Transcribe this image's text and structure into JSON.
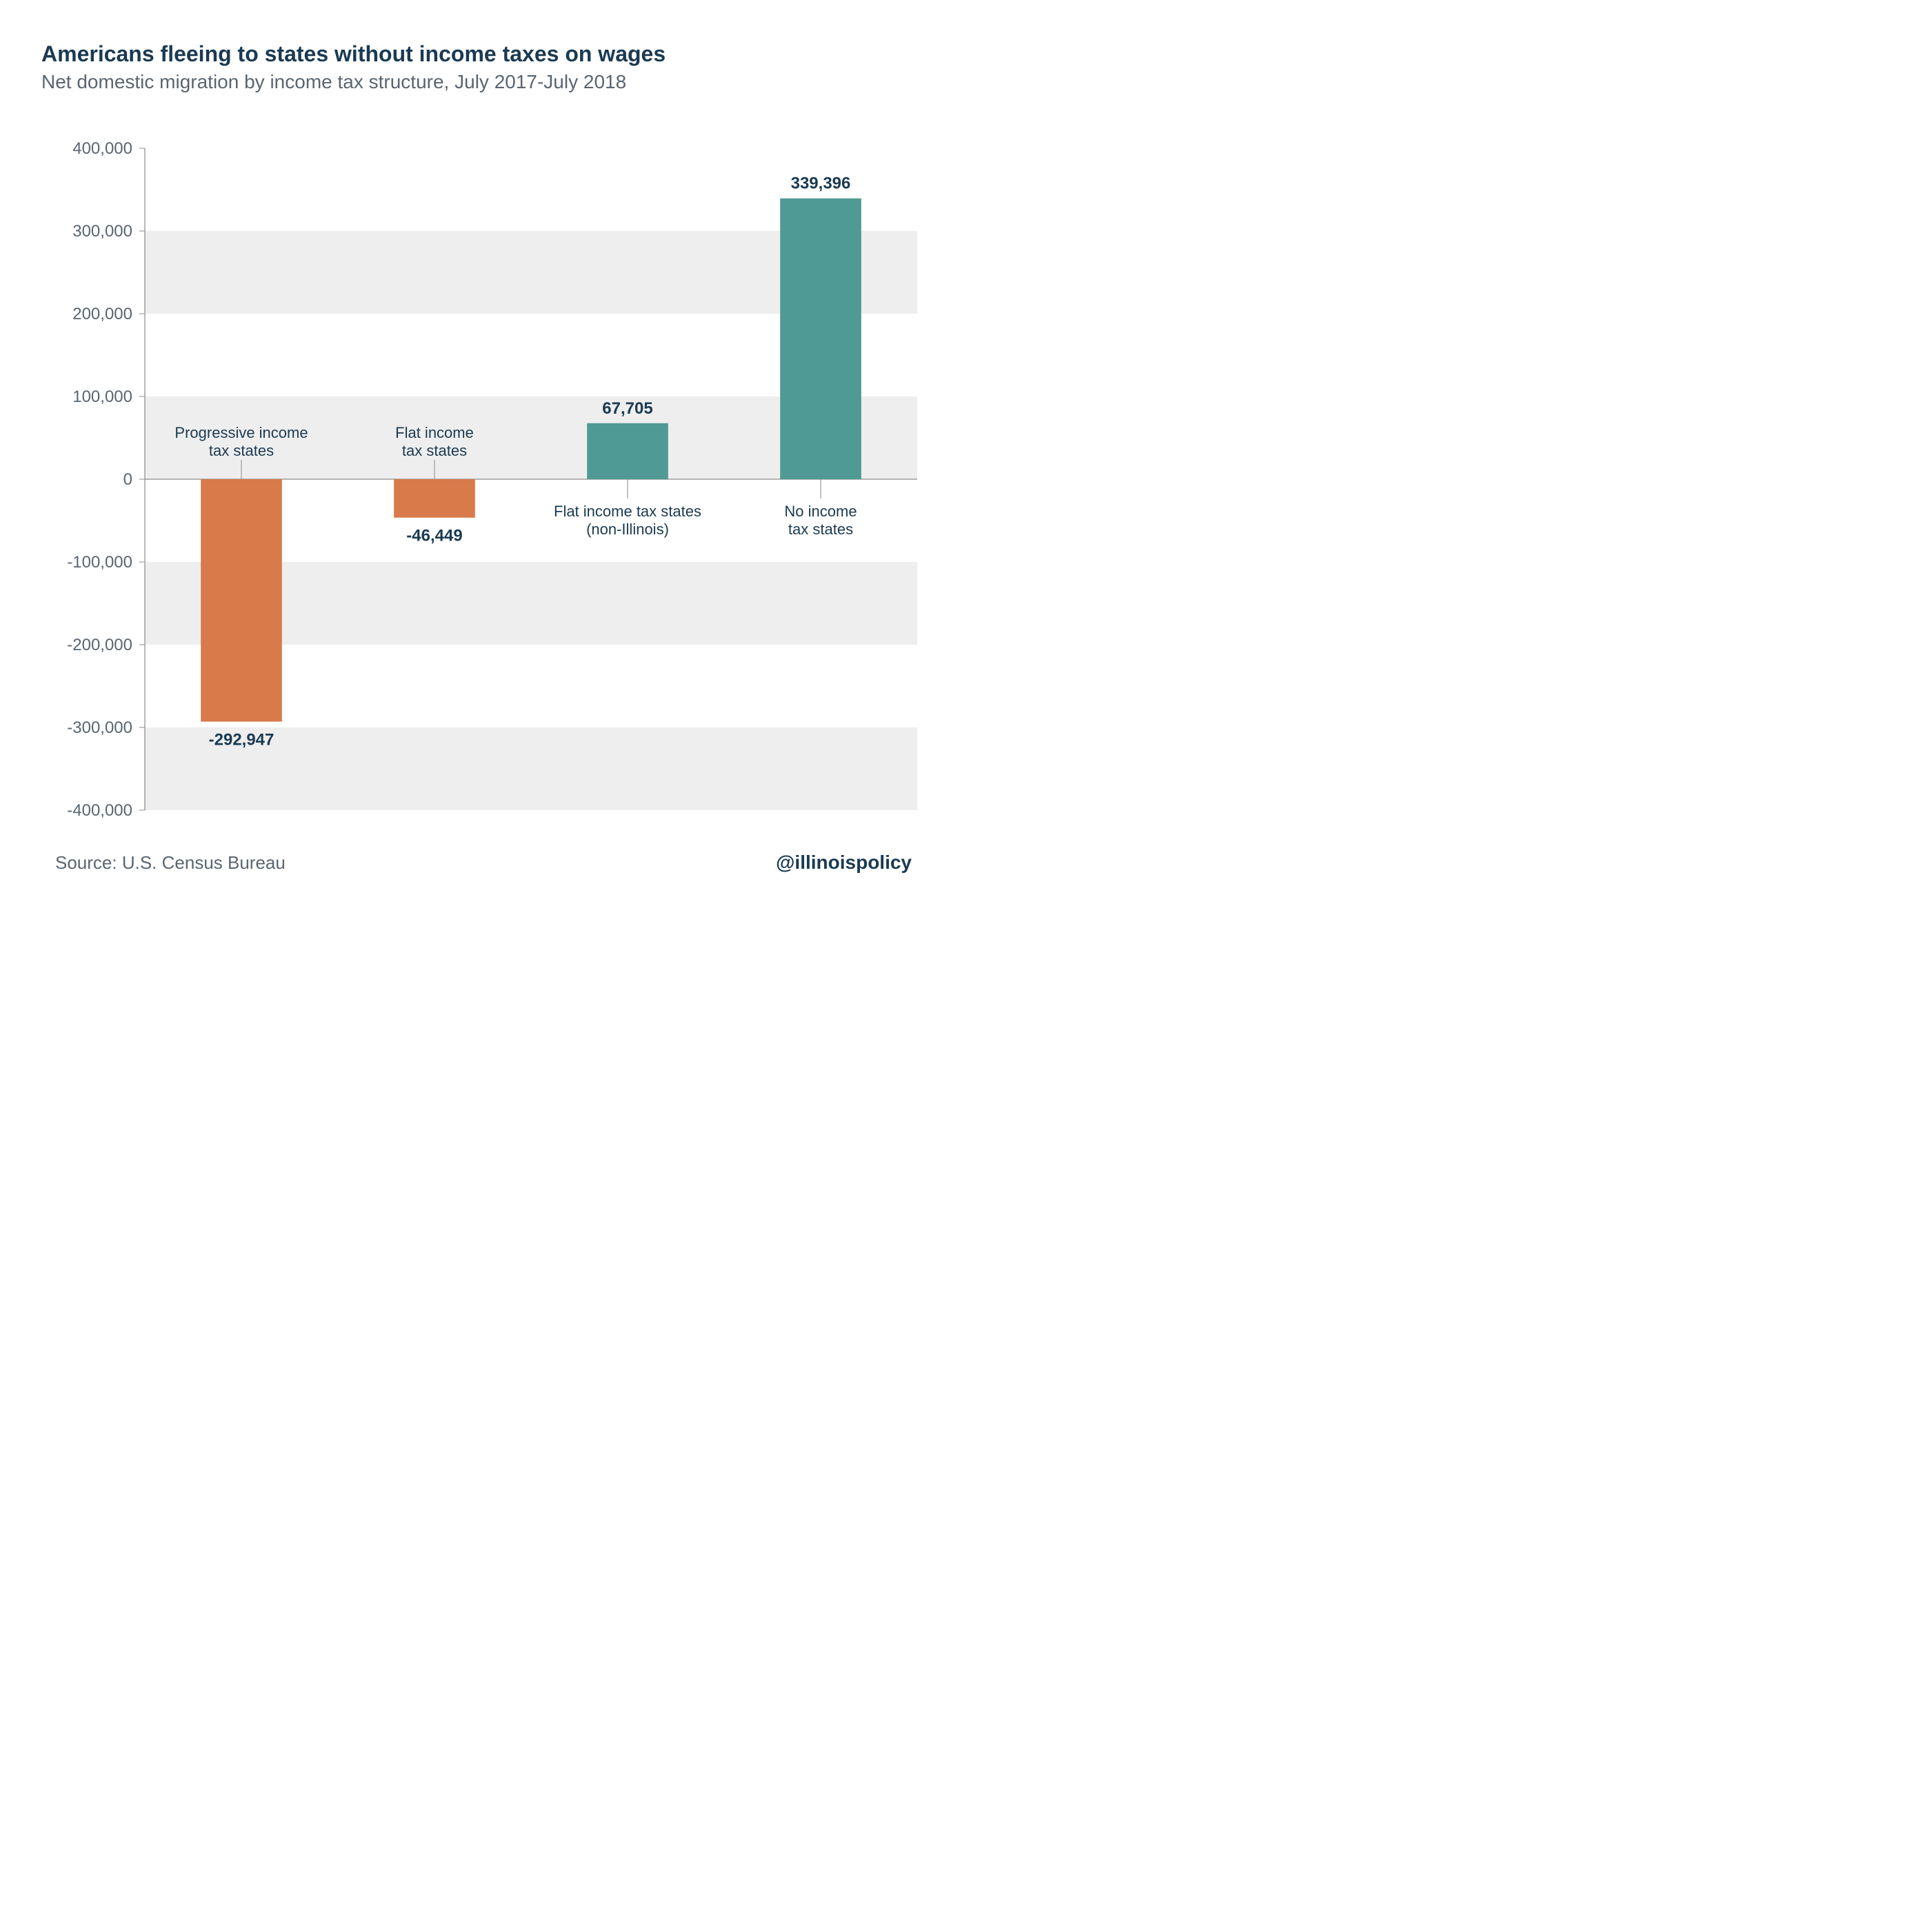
{
  "title": "Americans fleeing to states without income taxes on wages",
  "subtitle": "Net domestic migration by income tax structure, July 2017-July 2018",
  "source": "Source: U.S. Census Bureau",
  "handle": "@illinoispolicy",
  "chart": {
    "type": "bar",
    "ylim": [
      -400000,
      400000
    ],
    "ytick_step": 100000,
    "ytick_labels": [
      "-400,000",
      "-300,000",
      "-200,000",
      "-100,000",
      "0",
      "100,000",
      "200,000",
      "300,000",
      "400,000"
    ],
    "background_band_color": "#eeeeee",
    "background_color": "#ffffff",
    "axis_color": "#8a8a8a",
    "tick_label_color": "#5a6570",
    "tick_label_fontsize": 24,
    "bar_label_color": "#1a3a52",
    "bar_label_fontsize": 24,
    "category_label_color": "#1a3a52",
    "category_label_fontsize": 22,
    "positive_color": "#4f9a94",
    "negative_color": "#d87a4a",
    "bar_width_ratio": 0.42,
    "categories": [
      {
        "lines": [
          "Progressive income",
          "tax states"
        ],
        "value": -292947,
        "value_label": "-292,947"
      },
      {
        "lines": [
          "Flat income",
          "tax states"
        ],
        "value": -46449,
        "value_label": "-46,449"
      },
      {
        "lines": [
          "Flat income tax states",
          "(non-Illinois)"
        ],
        "value": 67705,
        "value_label": "67,705"
      },
      {
        "lines": [
          "No income",
          "tax states"
        ],
        "value": 339396,
        "value_label": "339,396"
      }
    ]
  }
}
